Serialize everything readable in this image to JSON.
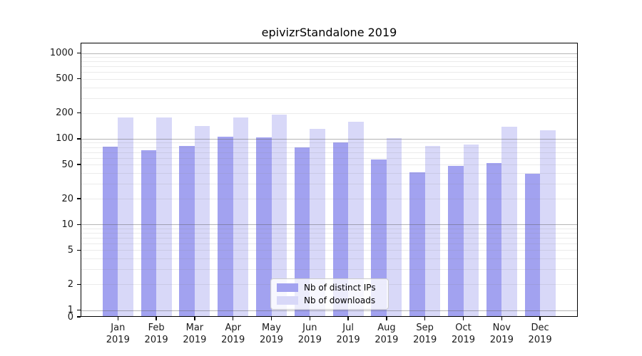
{
  "title": "epivizrStandalone 2019",
  "chart_data": {
    "type": "bar",
    "title": "epivizrStandalone 2019",
    "categories": [
      "Jan",
      "Feb",
      "Mar",
      "Apr",
      "May",
      "Jun",
      "Jul",
      "Aug",
      "Sep",
      "Oct",
      "Nov",
      "Dec"
    ],
    "category_year": "2019",
    "series": [
      {
        "name": "Nb of distinct IPs",
        "color": "#a2a2f0",
        "values": [
          81,
          74,
          82,
          105,
          103,
          80,
          90,
          57,
          41,
          48,
          52,
          39
        ]
      },
      {
        "name": "Nb of downloads",
        "color": "#d8d8f8",
        "values": [
          178,
          176,
          140,
          177,
          193,
          131,
          159,
          102,
          83,
          85,
          139,
          125
        ]
      }
    ],
    "yscale": "log",
    "yticks": [
      0,
      1,
      2,
      5,
      10,
      20,
      50,
      100,
      200,
      500,
      1000
    ],
    "ylim": [
      0,
      1300
    ],
    "xlabel": "",
    "ylabel": "",
    "grid": true,
    "grid_over_bars": true,
    "legend": {
      "items": [
        "Nb of distinct IPs",
        "Nb of downloads"
      ],
      "position": "lower-center-inside"
    }
  },
  "colors": {
    "bar_ips": "#a2a2f0",
    "bar_downloads": "#d8d8f8",
    "grid_major": "#b5b5b5",
    "grid_minor": "#eaeaea",
    "axis": "#000000",
    "text": "#1a1a1a",
    "legend_border": "#cccccc",
    "background": "#ffffff"
  }
}
